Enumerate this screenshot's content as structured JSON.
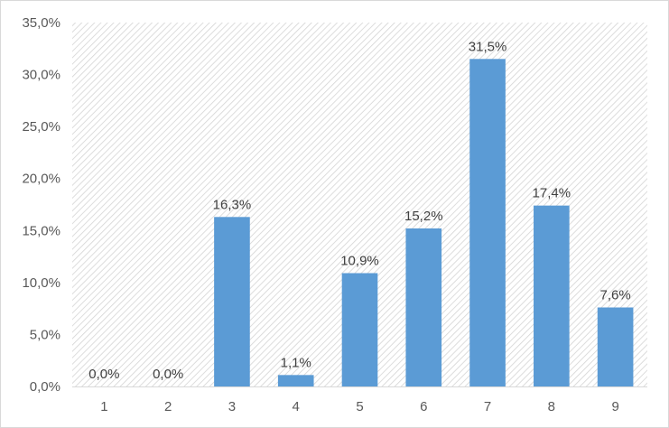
{
  "chart_data": {
    "type": "bar",
    "categories": [
      "1",
      "2",
      "3",
      "4",
      "5",
      "6",
      "7",
      "8",
      "9"
    ],
    "values": [
      0.0,
      0.0,
      16.3,
      1.1,
      10.9,
      15.2,
      31.5,
      17.4,
      7.6
    ],
    "value_labels": [
      "0,0%",
      "0,0%",
      "16,3%",
      "1,1%",
      "10,9%",
      "15,2%",
      "31,5%",
      "17,4%",
      "7,6%"
    ],
    "y_ticks": [
      0,
      5,
      10,
      15,
      20,
      25,
      30,
      35
    ],
    "y_tick_labels": [
      "0,0%",
      "5,0%",
      "10,0%",
      "15,0%",
      "20,0%",
      "25,0%",
      "30,0%",
      "35,0%"
    ],
    "ylim": [
      0,
      35
    ],
    "title": "",
    "xlabel": "",
    "ylabel": "",
    "grid": false,
    "legend": "none",
    "bar_color": "#5b9bd5",
    "plot_background": "hatched-light-gray"
  }
}
